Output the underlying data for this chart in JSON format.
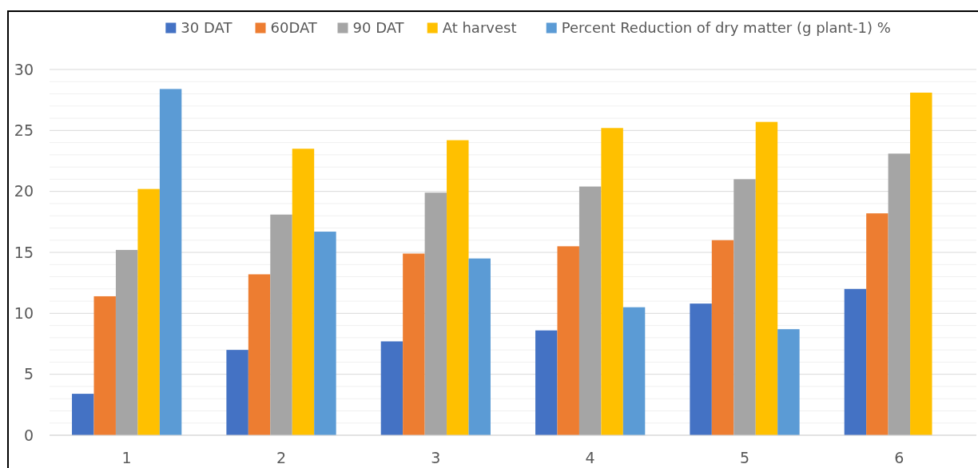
{
  "chart_data": {
    "type": "bar",
    "categories": [
      "1",
      "2",
      "3",
      "4",
      "5",
      "6"
    ],
    "series": [
      {
        "name": "30 DAT",
        "color": "#4472c4",
        "values": [
          3.4,
          7.0,
          7.7,
          8.6,
          10.8,
          12.0
        ]
      },
      {
        "name": "60DAT",
        "color": "#ed7d31",
        "values": [
          11.4,
          13.2,
          14.9,
          15.5,
          16.0,
          18.2
        ]
      },
      {
        "name": "90 DAT",
        "color": "#a5a5a5",
        "values": [
          15.2,
          18.1,
          19.9,
          20.4,
          21.0,
          23.1
        ]
      },
      {
        "name": "At harvest",
        "color": "#ffc000",
        "values": [
          20.2,
          23.5,
          24.2,
          25.2,
          25.7,
          28.1
        ]
      },
      {
        "name": "Percent Reduction of dry matter (g plant-1) %",
        "color": "#5b9bd5",
        "values": [
          28.4,
          16.7,
          14.5,
          10.5,
          8.7,
          null
        ]
      }
    ],
    "ylim": [
      0,
      30
    ],
    "yticks": [
      0,
      {
        "value": 1,
        "label": null
      },
      {
        "value": 2,
        "label": null
      },
      {
        "value": 3,
        "label": null
      },
      {
        "value": 4,
        "label": null
      },
      5,
      {
        "value": 6,
        "label": null
      },
      {
        "value": 7,
        "label": null
      },
      {
        "value": 8,
        "label": null
      },
      {
        "value": 9,
        "label": null
      },
      10,
      {
        "value": 11,
        "label": null
      },
      {
        "value": 12,
        "label": null
      },
      {
        "value": 13,
        "label": null
      },
      {
        "value": 14,
        "label": null
      },
      15,
      {
        "value": 16,
        "label": null
      },
      {
        "value": 17,
        "label": null
      },
      {
        "value": 18,
        "label": null
      },
      {
        "value": 19,
        "label": null
      },
      20,
      {
        "value": 21,
        "label": null
      },
      {
        "value": 22,
        "label": null
      },
      {
        "value": 23,
        "label": null
      },
      {
        "value": 24,
        "label": null
      },
      25,
      {
        "value": 26,
        "label": null
      },
      {
        "value": 27,
        "label": null
      },
      {
        "value": 28,
        "label": null
      },
      {
        "value": 29,
        "label": null
      },
      30
    ],
    "grid": "y",
    "legend": "top"
  }
}
